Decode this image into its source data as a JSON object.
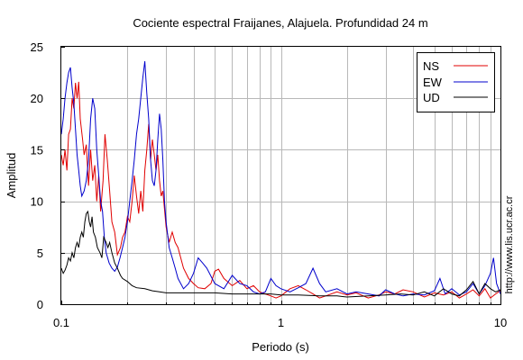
{
  "chart_data": {
    "type": "line",
    "title": "Cociente espectral Fraijanes, Alajuela. Profundidad 24 m",
    "xlabel": "Periodo (s)",
    "ylabel": "Amplitud",
    "x_scale": "log",
    "xlim": [
      0.1,
      10
    ],
    "ylim": [
      0,
      25
    ],
    "x_ticks": [
      0.1,
      1,
      10
    ],
    "x_tick_labels": [
      "0.1",
      "1",
      "10"
    ],
    "y_ticks": [
      0,
      5,
      10,
      15,
      20,
      25
    ],
    "y_tick_labels": [
      "0",
      "5",
      "10",
      "15",
      "20",
      "25"
    ],
    "grid": true,
    "legend_position": "top-right",
    "watermark": "http://www.lis.ucr.ac.cr",
    "series": [
      {
        "name": "NS",
        "color": "#e00000",
        "points": [
          [
            0.1,
            14.5
          ],
          [
            0.102,
            13.5
          ],
          [
            0.104,
            15.0
          ],
          [
            0.106,
            13.0
          ],
          [
            0.108,
            16.5
          ],
          [
            0.11,
            17.0
          ],
          [
            0.112,
            20.0
          ],
          [
            0.114,
            19.0
          ],
          [
            0.116,
            21.5
          ],
          [
            0.118,
            20.0
          ],
          [
            0.12,
            21.6
          ],
          [
            0.122,
            18.0
          ],
          [
            0.125,
            16.0
          ],
          [
            0.127,
            14.5
          ],
          [
            0.13,
            15.5
          ],
          [
            0.133,
            11.5
          ],
          [
            0.136,
            15.0
          ],
          [
            0.139,
            12.0
          ],
          [
            0.142,
            13.5
          ],
          [
            0.145,
            10.0
          ],
          [
            0.148,
            12.5
          ],
          [
            0.151,
            9.0
          ],
          [
            0.155,
            12.0
          ],
          [
            0.158,
            16.5
          ],
          [
            0.162,
            14.0
          ],
          [
            0.166,
            11.0
          ],
          [
            0.17,
            8.0
          ],
          [
            0.175,
            7.0
          ],
          [
            0.18,
            4.8
          ],
          [
            0.186,
            5.5
          ],
          [
            0.19,
            6.5
          ],
          [
            0.195,
            7.0
          ],
          [
            0.2,
            8.5
          ],
          [
            0.205,
            8.0
          ],
          [
            0.21,
            10.0
          ],
          [
            0.215,
            12.5
          ],
          [
            0.22,
            10.5
          ],
          [
            0.225,
            8.8
          ],
          [
            0.23,
            11.0
          ],
          [
            0.235,
            9.0
          ],
          [
            0.24,
            13.0
          ],
          [
            0.245,
            15.0
          ],
          [
            0.25,
            17.5
          ],
          [
            0.255,
            14.0
          ],
          [
            0.26,
            16.0
          ],
          [
            0.265,
            14.5
          ],
          [
            0.27,
            13.0
          ],
          [
            0.275,
            14.5
          ],
          [
            0.28,
            12.0
          ],
          [
            0.285,
            10.5
          ],
          [
            0.29,
            11.0
          ],
          [
            0.3,
            7.5
          ],
          [
            0.31,
            6.0
          ],
          [
            0.32,
            7.0
          ],
          [
            0.33,
            6.0
          ],
          [
            0.34,
            5.5
          ],
          [
            0.36,
            3.5
          ],
          [
            0.38,
            2.5
          ],
          [
            0.4,
            2.0
          ],
          [
            0.42,
            1.6
          ],
          [
            0.45,
            1.5
          ],
          [
            0.48,
            2.0
          ],
          [
            0.5,
            3.2
          ],
          [
            0.52,
            3.4
          ],
          [
            0.55,
            2.5
          ],
          [
            0.6,
            1.8
          ],
          [
            0.65,
            2.3
          ],
          [
            0.7,
            1.5
          ],
          [
            0.75,
            1.8
          ],
          [
            0.8,
            1.2
          ],
          [
            0.85,
            1.0
          ],
          [
            0.9,
            0.8
          ],
          [
            0.95,
            0.6
          ],
          [
            1.0,
            0.8
          ],
          [
            1.1,
            1.5
          ],
          [
            1.2,
            1.8
          ],
          [
            1.3,
            1.4
          ],
          [
            1.4,
            1.0
          ],
          [
            1.5,
            0.6
          ],
          [
            1.6,
            0.8
          ],
          [
            1.8,
            1.2
          ],
          [
            2.0,
            0.9
          ],
          [
            2.2,
            1.1
          ],
          [
            2.5,
            0.6
          ],
          [
            2.8,
            0.9
          ],
          [
            3.0,
            1.2
          ],
          [
            3.3,
            1.0
          ],
          [
            3.6,
            1.4
          ],
          [
            4.0,
            1.2
          ],
          [
            4.5,
            0.7
          ],
          [
            5.0,
            1.1
          ],
          [
            5.5,
            0.9
          ],
          [
            6.0,
            1.2
          ],
          [
            6.5,
            0.6
          ],
          [
            7.0,
            1.0
          ],
          [
            7.5,
            1.4
          ],
          [
            8.0,
            0.8
          ],
          [
            8.5,
            1.5
          ],
          [
            9.0,
            0.6
          ],
          [
            9.5,
            1.0
          ],
          [
            10.0,
            1.3
          ]
        ]
      },
      {
        "name": "EW",
        "color": "#0000cc",
        "points": [
          [
            0.1,
            16.5
          ],
          [
            0.102,
            18.0
          ],
          [
            0.104,
            20.0
          ],
          [
            0.106,
            21.5
          ],
          [
            0.108,
            22.5
          ],
          [
            0.11,
            23.0
          ],
          [
            0.112,
            21.0
          ],
          [
            0.114,
            19.5
          ],
          [
            0.116,
            17.0
          ],
          [
            0.118,
            14.5
          ],
          [
            0.12,
            13.0
          ],
          [
            0.122,
            11.5
          ],
          [
            0.124,
            10.5
          ],
          [
            0.127,
            11.0
          ],
          [
            0.13,
            12.0
          ],
          [
            0.133,
            14.0
          ],
          [
            0.136,
            18.0
          ],
          [
            0.139,
            20.0
          ],
          [
            0.142,
            19.0
          ],
          [
            0.145,
            15.0
          ],
          [
            0.148,
            12.5
          ],
          [
            0.151,
            10.0
          ],
          [
            0.154,
            9.0
          ],
          [
            0.157,
            6.5
          ],
          [
            0.16,
            5.0
          ],
          [
            0.165,
            4.0
          ],
          [
            0.17,
            3.5
          ],
          [
            0.175,
            3.2
          ],
          [
            0.18,
            3.6
          ],
          [
            0.185,
            4.5
          ],
          [
            0.19,
            5.5
          ],
          [
            0.195,
            6.5
          ],
          [
            0.2,
            8.0
          ],
          [
            0.205,
            10.0
          ],
          [
            0.21,
            12.0
          ],
          [
            0.215,
            14.0
          ],
          [
            0.22,
            16.5
          ],
          [
            0.225,
            18.0
          ],
          [
            0.23,
            20.0
          ],
          [
            0.235,
            22.0
          ],
          [
            0.24,
            23.6
          ],
          [
            0.245,
            20.5
          ],
          [
            0.25,
            18.0
          ],
          [
            0.255,
            14.0
          ],
          [
            0.26,
            12.0
          ],
          [
            0.265,
            11.5
          ],
          [
            0.27,
            13.0
          ],
          [
            0.275,
            16.0
          ],
          [
            0.28,
            18.5
          ],
          [
            0.285,
            17.0
          ],
          [
            0.29,
            14.0
          ],
          [
            0.295,
            10.0
          ],
          [
            0.3,
            8.0
          ],
          [
            0.31,
            5.5
          ],
          [
            0.32,
            4.5
          ],
          [
            0.33,
            3.5
          ],
          [
            0.34,
            2.5
          ],
          [
            0.36,
            1.5
          ],
          [
            0.38,
            2.0
          ],
          [
            0.4,
            3.0
          ],
          [
            0.42,
            4.5
          ],
          [
            0.44,
            4.0
          ],
          [
            0.46,
            3.5
          ],
          [
            0.5,
            2.0
          ],
          [
            0.55,
            1.5
          ],
          [
            0.6,
            2.8
          ],
          [
            0.65,
            2.0
          ],
          [
            0.7,
            1.8
          ],
          [
            0.75,
            1.2
          ],
          [
            0.8,
            1.0
          ],
          [
            0.85,
            1.2
          ],
          [
            0.9,
            2.5
          ],
          [
            0.95,
            1.8
          ],
          [
            1.0,
            1.5
          ],
          [
            1.1,
            1.2
          ],
          [
            1.2,
            1.6
          ],
          [
            1.3,
            2.0
          ],
          [
            1.4,
            3.5
          ],
          [
            1.5,
            2.0
          ],
          [
            1.6,
            1.2
          ],
          [
            1.8,
            1.5
          ],
          [
            2.0,
            1.0
          ],
          [
            2.2,
            1.2
          ],
          [
            2.5,
            1.0
          ],
          [
            2.8,
            0.8
          ],
          [
            3.0,
            1.4
          ],
          [
            3.3,
            1.0
          ],
          [
            3.6,
            0.8
          ],
          [
            4.0,
            1.0
          ],
          [
            4.5,
            0.9
          ],
          [
            5.0,
            1.3
          ],
          [
            5.3,
            2.5
          ],
          [
            5.6,
            1.0
          ],
          [
            6.0,
            1.5
          ],
          [
            6.5,
            0.9
          ],
          [
            7.0,
            1.2
          ],
          [
            7.5,
            2.0
          ],
          [
            8.0,
            1.0
          ],
          [
            8.5,
            1.8
          ],
          [
            9.0,
            3.0
          ],
          [
            9.3,
            4.5
          ],
          [
            9.6,
            2.0
          ],
          [
            10.0,
            1.0
          ]
        ]
      },
      {
        "name": "UD",
        "color": "#000000",
        "points": [
          [
            0.1,
            3.5
          ],
          [
            0.102,
            3.0
          ],
          [
            0.104,
            3.3
          ],
          [
            0.106,
            3.8
          ],
          [
            0.108,
            4.5
          ],
          [
            0.11,
            4.2
          ],
          [
            0.112,
            5.0
          ],
          [
            0.114,
            4.5
          ],
          [
            0.116,
            5.5
          ],
          [
            0.118,
            6.0
          ],
          [
            0.12,
            5.5
          ],
          [
            0.122,
            6.5
          ],
          [
            0.124,
            7.0
          ],
          [
            0.126,
            6.5
          ],
          [
            0.128,
            8.0
          ],
          [
            0.13,
            8.8
          ],
          [
            0.132,
            9.0
          ],
          [
            0.134,
            8.0
          ],
          [
            0.136,
            7.5
          ],
          [
            0.138,
            8.5
          ],
          [
            0.14,
            7.0
          ],
          [
            0.143,
            6.5
          ],
          [
            0.146,
            5.5
          ],
          [
            0.15,
            5.0
          ],
          [
            0.153,
            4.5
          ],
          [
            0.156,
            6.5
          ],
          [
            0.16,
            6.0
          ],
          [
            0.163,
            5.5
          ],
          [
            0.166,
            6.0
          ],
          [
            0.17,
            5.0
          ],
          [
            0.175,
            4.0
          ],
          [
            0.18,
            3.5
          ],
          [
            0.186,
            2.8
          ],
          [
            0.19,
            2.5
          ],
          [
            0.2,
            2.2
          ],
          [
            0.21,
            1.8
          ],
          [
            0.22,
            1.6
          ],
          [
            0.24,
            1.5
          ],
          [
            0.26,
            1.3
          ],
          [
            0.28,
            1.2
          ],
          [
            0.3,
            1.1
          ],
          [
            0.35,
            1.1
          ],
          [
            0.4,
            1.1
          ],
          [
            0.5,
            1.1
          ],
          [
            0.6,
            1.0
          ],
          [
            0.7,
            1.0
          ],
          [
            0.8,
            1.0
          ],
          [
            0.9,
            1.0
          ],
          [
            1.0,
            0.9
          ],
          [
            1.2,
            0.9
          ],
          [
            1.5,
            0.8
          ],
          [
            1.8,
            0.8
          ],
          [
            2.0,
            0.7
          ],
          [
            2.5,
            0.8
          ],
          [
            3.0,
            0.9
          ],
          [
            3.5,
            1.0
          ],
          [
            4.0,
            0.9
          ],
          [
            4.5,
            1.2
          ],
          [
            5.0,
            0.8
          ],
          [
            5.5,
            1.5
          ],
          [
            6.0,
            1.0
          ],
          [
            6.5,
            0.8
          ],
          [
            7.0,
            1.4
          ],
          [
            7.5,
            2.2
          ],
          [
            8.0,
            1.0
          ],
          [
            8.5,
            2.0
          ],
          [
            9.0,
            1.5
          ],
          [
            9.5,
            1.2
          ],
          [
            10.0,
            1.4
          ]
        ]
      }
    ]
  }
}
